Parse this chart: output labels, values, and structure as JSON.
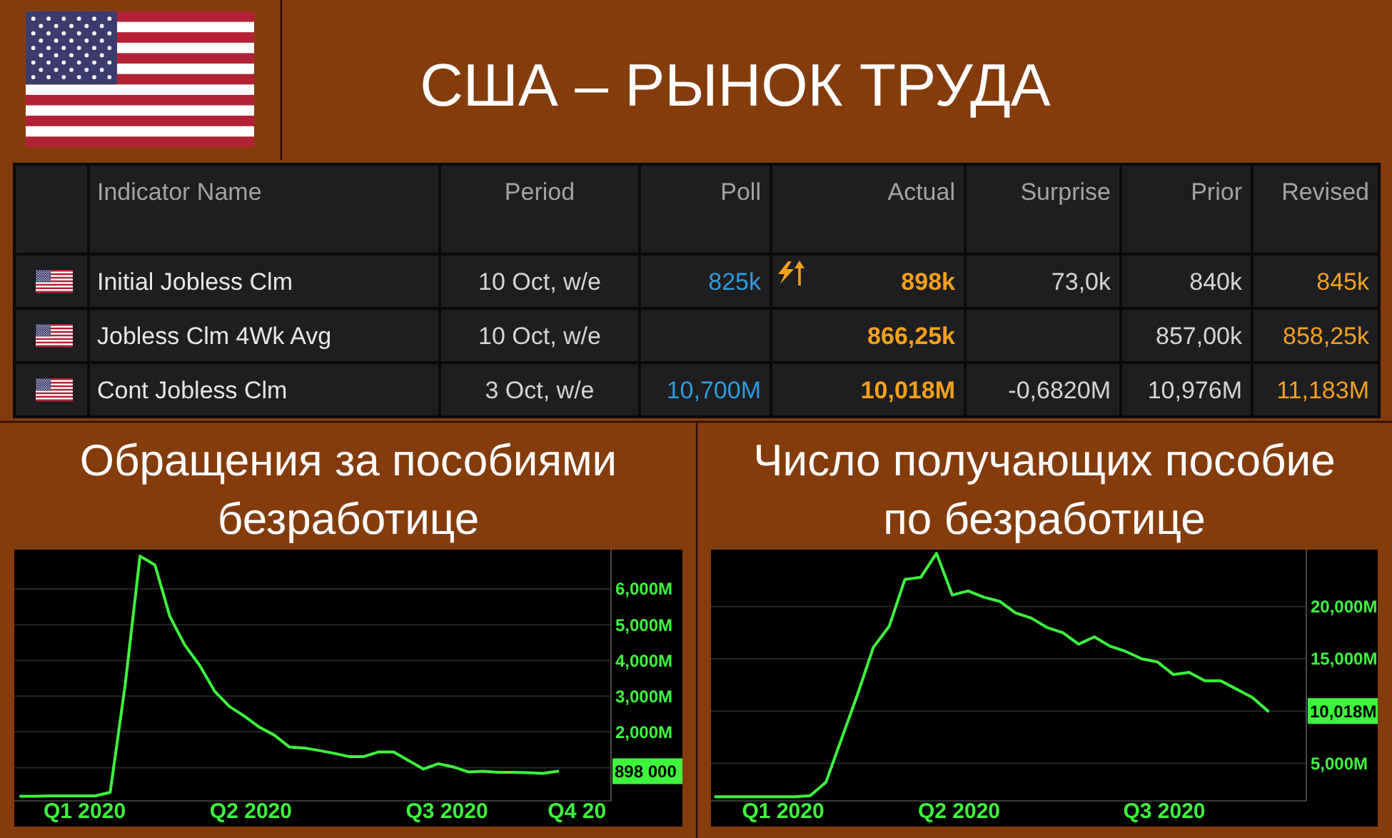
{
  "chart_data": [
    {
      "type": "other",
      "title": "США – РЫНОК ТРУДА",
      "categories": [
        "Indicator Name",
        "Period",
        "Poll",
        "Actual",
        "Surprise",
        "Prior",
        "Revised"
      ],
      "cell_labels": [
        [
          "Initial Jobless Clm",
          "10 Oct, w/e",
          "825k",
          "898k",
          "73,0k",
          "840k",
          "845k"
        ],
        [
          "Jobless Clm 4Wk Avg",
          "10 Oct, w/e",
          null,
          "866,25k",
          null,
          "857,00k",
          "858,25k"
        ],
        [
          "Cont Jobless Clm",
          "3 Oct, w/e",
          "10,700M",
          "10,018M",
          "-0,6820M",
          "10,976M",
          "11,183M"
        ]
      ]
    },
    {
      "type": "line",
      "title": "Обращения за пособиями безработице",
      "color": "#3df53d",
      "x": [
        "2020-02-01",
        "2020-02-08",
        "2020-02-15",
        "2020-02-22",
        "2020-02-29",
        "2020-03-07",
        "2020-03-14",
        "2020-03-21",
        "2020-03-28",
        "2020-04-04",
        "2020-04-11",
        "2020-04-18",
        "2020-04-25",
        "2020-05-02",
        "2020-05-09",
        "2020-05-16",
        "2020-05-23",
        "2020-05-30",
        "2020-06-06",
        "2020-06-13",
        "2020-06-20",
        "2020-06-27",
        "2020-07-04",
        "2020-07-11",
        "2020-07-18",
        "2020-07-25",
        "2020-08-01",
        "2020-08-08",
        "2020-08-15",
        "2020-08-22",
        "2020-08-29",
        "2020-09-05",
        "2020-09-12",
        "2020-09-19",
        "2020-09-26",
        "2020-10-03",
        "2020-10-10"
      ],
      "values": [
        200,
        200,
        210,
        210,
        210,
        210,
        310,
        3300,
        6920,
        6670,
        5230,
        4430,
        3860,
        3140,
        2710,
        2440,
        2130,
        1910,
        1580,
        1550,
        1480,
        1400,
        1310,
        1310,
        1440,
        1440,
        1200,
        960,
        1110,
        1020,
        880,
        900,
        870,
        870,
        860,
        840,
        900
      ],
      "xlim": [
        "2020-01-29",
        "2020-11-04"
      ],
      "xticks": [
        {
          "value": "2020-03-02",
          "label": "Q1 2020"
        },
        {
          "value": "2020-05-19",
          "label": "Q2 2020"
        },
        {
          "value": "2020-08-19",
          "label": "Q3 2020"
        },
        {
          "value": "2020-10-19",
          "label": "Q4 20"
        }
      ],
      "ylim": [
        70,
        7100
      ],
      "yticks": [
        {
          "value": 1000,
          "label": null
        },
        {
          "value": 2000,
          "label": "2,000M"
        },
        {
          "value": 3000,
          "label": "3,000M"
        },
        {
          "value": 4000,
          "label": "4,000M"
        },
        {
          "value": 5000,
          "label": "5,000M"
        },
        {
          "value": 6000,
          "label": "6,000M"
        }
      ],
      "grid": "y",
      "annotations": [
        "898 000"
      ]
    },
    {
      "type": "line",
      "title": "Число получающих пособие по безработице",
      "color": "#3df53d",
      "x": [
        "2020-02-01",
        "2020-02-08",
        "2020-02-15",
        "2020-02-22",
        "2020-02-29",
        "2020-03-07",
        "2020-03-14",
        "2020-03-21",
        "2020-03-28",
        "2020-04-04",
        "2020-04-11",
        "2020-04-18",
        "2020-04-25",
        "2020-05-02",
        "2020-05-09",
        "2020-05-16",
        "2020-05-23",
        "2020-05-30",
        "2020-06-06",
        "2020-06-13",
        "2020-06-20",
        "2020-06-27",
        "2020-07-04",
        "2020-07-11",
        "2020-07-18",
        "2020-07-25",
        "2020-08-01",
        "2020-08-08",
        "2020-08-15",
        "2020-08-22",
        "2020-08-29",
        "2020-09-05",
        "2020-09-12",
        "2020-09-19",
        "2020-09-26",
        "2020-10-03"
      ],
      "values": [
        1800,
        1800,
        1800,
        1800,
        1800,
        1800,
        1900,
        3200,
        7400,
        11600,
        16100,
        18100,
        22600,
        22800,
        25100,
        21100,
        21500,
        20900,
        20500,
        19400,
        18900,
        18000,
        17500,
        16400,
        17100,
        16200,
        15700,
        15000,
        14700,
        13500,
        13700,
        12900,
        12900,
        12100,
        11300,
        10000
      ],
      "xlim": [
        "2020-01-30",
        "2020-10-20"
      ],
      "xticks": [
        {
          "value": "2020-03-02",
          "label": "Q1 2020"
        },
        {
          "value": "2020-05-19",
          "label": "Q2 2020"
        },
        {
          "value": "2020-08-18",
          "label": "Q3 2020"
        }
      ],
      "ylim": [
        1400,
        25450
      ],
      "yticks": [
        {
          "value": 5000,
          "label": "5,000M"
        },
        {
          "value": 10000,
          "label": null
        },
        {
          "value": 15000,
          "label": "15,000M"
        },
        {
          "value": 20000,
          "label": "20,000M"
        }
      ],
      "grid": "y",
      "annotations": [
        "10,018M"
      ]
    }
  ]
}
